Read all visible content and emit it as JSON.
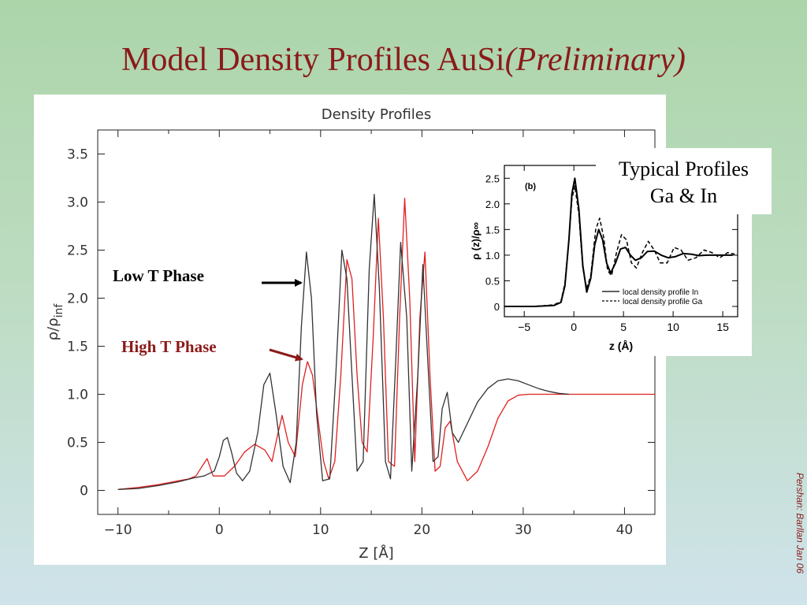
{
  "slide": {
    "title_main": "Model Density Profiles AuSi",
    "title_italic": "(Preliminary)",
    "credit": "Pershan: Barllan Jan 06"
  },
  "annotations": {
    "low_t": "Low T Phase",
    "high_t": "High T Phase",
    "inset_caption_line1": "Typical Profiles",
    "inset_caption_line2": "Ga & In"
  },
  "colors": {
    "title": "#8b1a1a",
    "low_t_series": "#333333",
    "high_t_series": "#e02020",
    "high_t_label": "#8b1a1a"
  },
  "chart_data": [
    {
      "type": "line",
      "title": "Density Profiles",
      "xlabel": "Z [Å]",
      "ylabel": "ρ/ρ_inf",
      "ylabel_main": "ρ/ρ",
      "ylabel_sub": "inf",
      "xlim": [
        -12,
        43
      ],
      "ylim": [
        -0.25,
        3.75
      ],
      "xticks": [
        -10,
        0,
        10,
        20,
        30,
        40
      ],
      "xtick_labels": [
        "−10",
        "0",
        "10",
        "20",
        "30",
        "40"
      ],
      "yticks": [
        0,
        0.5,
        1.0,
        1.5,
        2.0,
        2.5,
        3.0,
        3.5
      ],
      "ytick_labels": [
        "0",
        "0.5",
        "1.0",
        "1.5",
        "2.0",
        "2.5",
        "3.0",
        "3.5"
      ],
      "grid": false,
      "series": [
        {
          "name": "Low T Phase",
          "x": [
            -10,
            -8,
            -6,
            -4,
            -2.5,
            -1.5,
            -0.5,
            0,
            0.4,
            0.8,
            1.2,
            1.7,
            2.3,
            3,
            3.8,
            4.4,
            5,
            5.6,
            6.3,
            7,
            7.6,
            8.1,
            8.6,
            9.1,
            9.6,
            10.2,
            10.9,
            11.5,
            12.1,
            12.6,
            13.1,
            13.6,
            14.2,
            14.8,
            15.3,
            15.8,
            16.4,
            16.9,
            17.4,
            17.9,
            18.5,
            19,
            19.6,
            20.1,
            20.6,
            21.1,
            21.6,
            22,
            22.5,
            23,
            23.6,
            24.5,
            25.5,
            26.5,
            27.5,
            28.5,
            29.5,
            30.5,
            31.5,
            32.5,
            33.5,
            34.5
          ],
          "y": [
            0.01,
            0.02,
            0.05,
            0.09,
            0.13,
            0.15,
            0.2,
            0.35,
            0.52,
            0.55,
            0.4,
            0.18,
            0.1,
            0.2,
            0.6,
            1.1,
            1.22,
            0.8,
            0.25,
            0.08,
            0.5,
            1.7,
            2.48,
            2.0,
            0.8,
            0.1,
            0.12,
            1.2,
            2.5,
            2.2,
            1.2,
            0.2,
            0.3,
            2.3,
            3.08,
            2.1,
            0.3,
            0.12,
            1.3,
            2.58,
            1.8,
            0.2,
            1.2,
            2.35,
            1.3,
            0.3,
            0.35,
            0.85,
            1.02,
            0.6,
            0.5,
            0.7,
            0.92,
            1.06,
            1.14,
            1.16,
            1.14,
            1.1,
            1.06,
            1.03,
            1.01,
            1.0
          ]
        },
        {
          "name": "High T Phase",
          "x": [
            -10,
            -8,
            -6,
            -4,
            -3,
            -2.3,
            -1.7,
            -1.2,
            -0.6,
            0.5,
            1.5,
            2.5,
            3.5,
            4.5,
            5.2,
            5.7,
            6.2,
            6.8,
            7.5,
            8.2,
            8.7,
            9.2,
            9.8,
            10.3,
            10.8,
            11.4,
            12,
            12.6,
            13.1,
            13.6,
            14.1,
            14.6,
            15.2,
            15.7,
            16.2,
            16.7,
            17.3,
            17.8,
            18.3,
            18.8,
            19.3,
            19.8,
            20.3,
            20.8,
            21.3,
            21.8,
            22.3,
            22.8,
            23.5,
            24.5,
            25.5,
            26.5,
            27.5,
            28.5,
            29.5,
            30.5,
            32,
            34,
            36,
            38,
            40,
            43
          ],
          "y": [
            0.01,
            0.03,
            0.06,
            0.1,
            0.12,
            0.15,
            0.25,
            0.33,
            0.15,
            0.15,
            0.25,
            0.4,
            0.48,
            0.42,
            0.3,
            0.55,
            0.78,
            0.5,
            0.35,
            1.1,
            1.34,
            1.2,
            0.7,
            0.3,
            0.12,
            0.3,
            1.2,
            2.4,
            2.2,
            1.2,
            0.5,
            0.4,
            1.6,
            2.83,
            1.8,
            0.3,
            0.25,
            1.8,
            3.04,
            2.0,
            0.3,
            1.8,
            2.48,
            1.2,
            0.2,
            0.25,
            0.65,
            0.72,
            0.3,
            0.1,
            0.2,
            0.45,
            0.75,
            0.93,
            0.99,
            1.0,
            1.0,
            1.0,
            1.0,
            1.0,
            1.0,
            1.0
          ]
        }
      ]
    },
    {
      "type": "line",
      "title": "(b)",
      "xlabel": "z (Å)",
      "ylabel": "ρ (z)/ρ∞",
      "xlim": [
        -7,
        16.5
      ],
      "ylim": [
        -0.2,
        2.75
      ],
      "xticks": [
        -5,
        0,
        5,
        10,
        15
      ],
      "xtick_labels": [
        "−5",
        "0",
        "5",
        "10",
        "15"
      ],
      "yticks": [
        0,
        0.5,
        1.0,
        1.5,
        2.0,
        2.5
      ],
      "ytick_labels": [
        "0",
        "0.5",
        "1.0",
        "1.5",
        "2.0",
        "2.5"
      ],
      "grid": false,
      "legend_position": "bottom-right",
      "series": [
        {
          "name": "local density profile In",
          "style": "solid",
          "x": [
            -7,
            -4,
            -2,
            -1.3,
            -0.9,
            -0.5,
            -0.2,
            0.1,
            0.5,
            0.9,
            1.3,
            1.7,
            2.1,
            2.5,
            2.9,
            3.3,
            3.7,
            4.2,
            4.7,
            5.2,
            5.7,
            6.2,
            6.8,
            7.4,
            8.1,
            8.8,
            9.5,
            10.2,
            11,
            11.8,
            12.6,
            13.4,
            14.5,
            16
          ],
          "y": [
            0,
            0,
            0.02,
            0.08,
            0.4,
            1.3,
            2.2,
            2.5,
            1.9,
            0.8,
            0.28,
            0.55,
            1.2,
            1.5,
            1.3,
            0.85,
            0.65,
            0.85,
            1.12,
            1.15,
            1.0,
            0.9,
            0.95,
            1.07,
            1.08,
            1.0,
            0.95,
            0.97,
            1.03,
            1.02,
            0.99,
            1.0,
            1.0,
            1.0
          ]
        },
        {
          "name": "local density profile Ga",
          "style": "dashed",
          "x": [
            -7,
            -4,
            -2,
            -1.3,
            -0.9,
            -0.5,
            -0.2,
            0.1,
            0.5,
            0.9,
            1.3,
            1.7,
            2.2,
            2.6,
            3,
            3.4,
            3.8,
            4.3,
            4.8,
            5.3,
            5.8,
            6.3,
            6.9,
            7.5,
            8.1,
            8.7,
            9.4,
            10.1,
            10.8,
            11.5,
            12.3,
            13.1,
            13.9,
            14.7,
            15.5,
            16.2
          ],
          "y": [
            0,
            0,
            0.03,
            0.1,
            0.45,
            1.3,
            2.1,
            2.35,
            1.8,
            0.75,
            0.35,
            0.6,
            1.5,
            1.72,
            1.35,
            0.7,
            0.6,
            1.05,
            1.4,
            1.3,
            0.85,
            0.75,
            1.05,
            1.27,
            1.1,
            0.85,
            0.85,
            1.15,
            1.1,
            0.9,
            0.95,
            1.1,
            1.05,
            0.95,
            1.05,
            1.02
          ]
        }
      ]
    }
  ]
}
